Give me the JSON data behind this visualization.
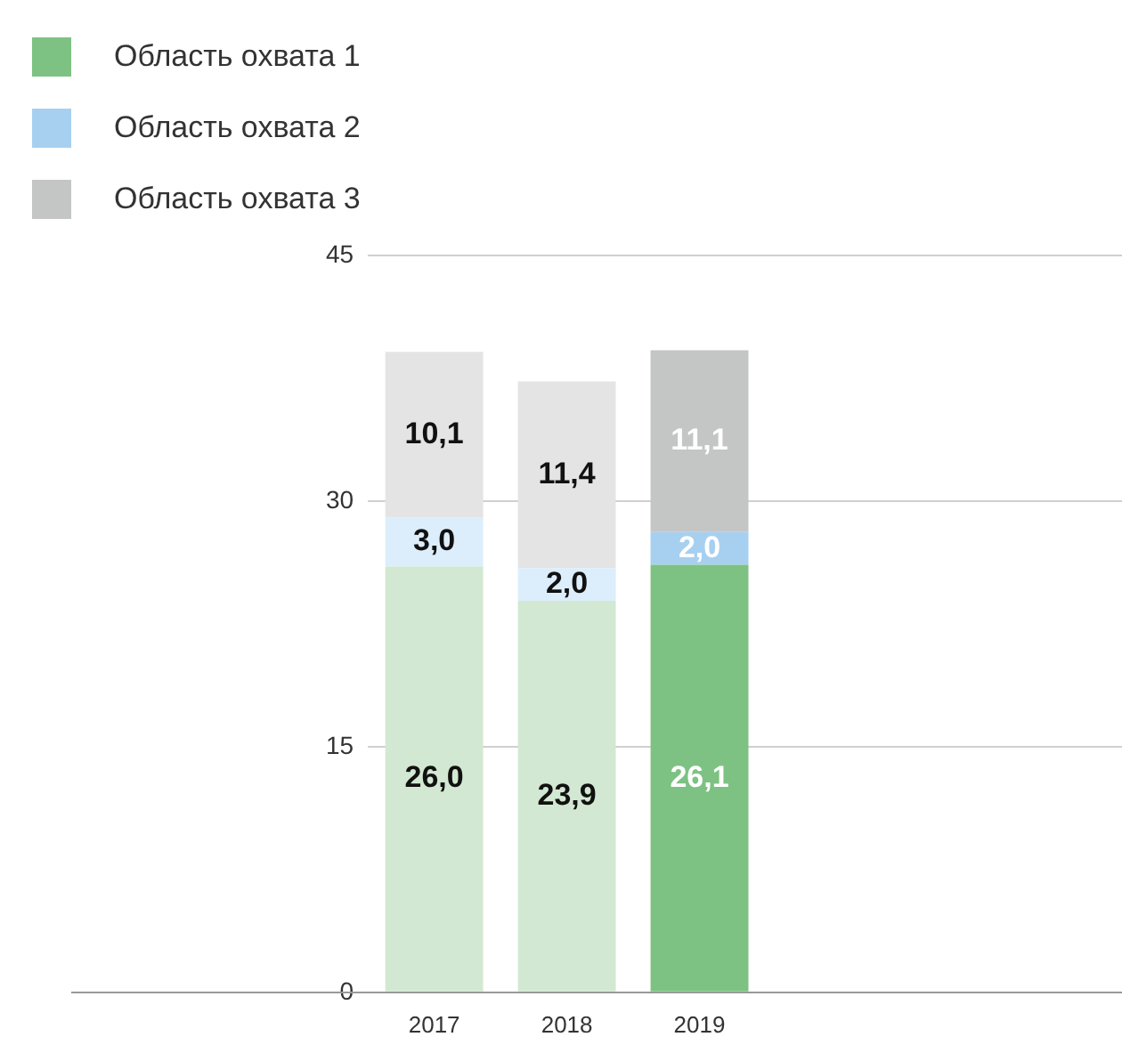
{
  "chart_data": {
    "type": "bar",
    "stacked": true,
    "categories": [
      "2017",
      "2018",
      "2019"
    ],
    "series": [
      {
        "name": "Область охвата 1",
        "color": "#7dc283",
        "colors": [
          "#d3e8d2",
          "#d3e8d2",
          "#7dc283"
        ],
        "values": [
          26.0,
          23.9,
          26.1
        ],
        "value_labels": [
          "26,0",
          "23,9",
          "26,1"
        ]
      },
      {
        "name": "Область охвата 2",
        "color": "#a7d0f0",
        "colors": [
          "#dceefb",
          "#dceefb",
          "#a7d0f0"
        ],
        "values": [
          3.0,
          2.0,
          2.0
        ],
        "value_labels": [
          "3,0",
          "2,0",
          "2,0"
        ]
      },
      {
        "name": "Область охвата 3",
        "color": "#c4c6c5",
        "colors": [
          "#e4e4e4",
          "#e4e4e4",
          "#c4c6c5"
        ],
        "values": [
          10.1,
          11.4,
          11.1
        ],
        "value_labels": [
          "10,1",
          "11,4",
          "11,1"
        ]
      }
    ],
    "ylim": [
      0,
      45
    ],
    "yticks": [
      0,
      15,
      30,
      45
    ],
    "grid": "y",
    "legend": "top left"
  }
}
